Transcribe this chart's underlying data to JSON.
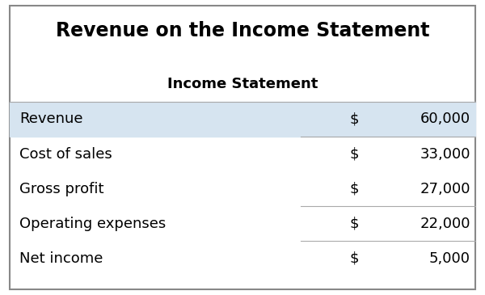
{
  "title": "Revenue on the Income Statement",
  "subtitle": "Income Statement",
  "rows": [
    {
      "label": "Revenue",
      "dollar": "$",
      "value": "60,000",
      "highlight": true
    },
    {
      "label": "Cost of sales",
      "dollar": "$",
      "value": "33,000",
      "highlight": false
    },
    {
      "label": "Gross profit",
      "dollar": "$",
      "value": "27,000",
      "highlight": false
    },
    {
      "label": "Operating expenses",
      "dollar": "$",
      "value": "22,000",
      "highlight": false
    },
    {
      "label": "Net income",
      "dollar": "$",
      "value": "5,000",
      "highlight": false
    }
  ],
  "highlight_color": "#d6e4f0",
  "bg_color": "#ffffff",
  "border_color": "#888888",
  "line_color": "#aaaaaa",
  "title_fontsize": 17,
  "subtitle_fontsize": 13,
  "row_fontsize": 13,
  "fig_width": 6.0,
  "fig_height": 3.65
}
